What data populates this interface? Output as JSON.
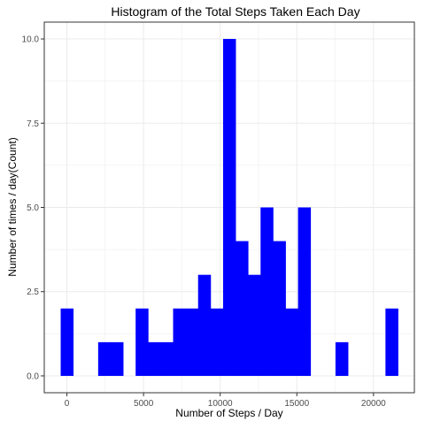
{
  "chart_data": {
    "type": "bar",
    "title": "Histogram of the Total Steps Taken Each Day",
    "xlabel": "Number of Steps / Day",
    "ylabel": "Number of times / day(Count)",
    "bin_width": 815.0,
    "bins": [
      {
        "x": 0,
        "count": 2
      },
      {
        "x": 815,
        "count": 0
      },
      {
        "x": 1630,
        "count": 0
      },
      {
        "x": 2445,
        "count": 1
      },
      {
        "x": 3260,
        "count": 1
      },
      {
        "x": 4075,
        "count": 0
      },
      {
        "x": 4890,
        "count": 2
      },
      {
        "x": 5705,
        "count": 1
      },
      {
        "x": 6520,
        "count": 1
      },
      {
        "x": 7335,
        "count": 2
      },
      {
        "x": 8150,
        "count": 2
      },
      {
        "x": 8965,
        "count": 3
      },
      {
        "x": 9780,
        "count": 2
      },
      {
        "x": 10595,
        "count": 10
      },
      {
        "x": 11410,
        "count": 4
      },
      {
        "x": 12225,
        "count": 3
      },
      {
        "x": 13040,
        "count": 5
      },
      {
        "x": 13855,
        "count": 4
      },
      {
        "x": 14670,
        "count": 2
      },
      {
        "x": 15485,
        "count": 5
      },
      {
        "x": 16300,
        "count": 0
      },
      {
        "x": 17115,
        "count": 0
      },
      {
        "x": 17930,
        "count": 1
      },
      {
        "x": 18745,
        "count": 0
      },
      {
        "x": 19560,
        "count": 0
      },
      {
        "x": 20375,
        "count": 0
      },
      {
        "x": 21190,
        "count": 2
      }
    ],
    "xlim": [
      -1478,
      22668
    ],
    "ylim": [
      -0.5,
      10.5
    ],
    "x_ticks": [
      0,
      5000,
      10000,
      15000,
      20000
    ],
    "x_tick_labels": [
      "0",
      "5000",
      "10000",
      "15000",
      "20000"
    ],
    "x_minor_ticks": [
      2500,
      7500,
      12500,
      17500
    ],
    "y_ticks": [
      0,
      2.5,
      5,
      7.5,
      10
    ],
    "y_tick_labels": [
      "0.0",
      "2.5",
      "5.0",
      "7.5",
      "10.0"
    ],
    "y_minor_ticks": [
      1.25,
      3.75,
      6.25,
      8.75
    ],
    "grid": true,
    "bar_color": "#0000ff",
    "grid_color": "#ebebeb",
    "border_color": "#333333"
  }
}
